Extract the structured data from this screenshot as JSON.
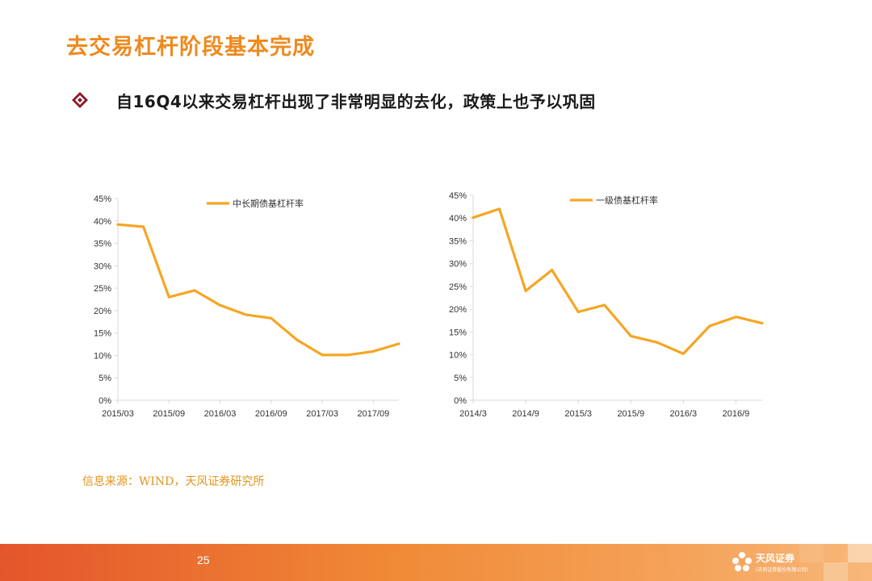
{
  "slide": {
    "title": "去交易杠杆阶段基本完成",
    "bullet_text": "自16Q4以来交易杠杆出现了非常明显的去化，政策上也予以巩固",
    "source": "信息来源：WIND，天风证券研究所",
    "page_number": "25"
  },
  "brand": {
    "name": "天风证券",
    "tagline": "(天风证券股份有限公司)"
  },
  "colors": {
    "accent": "#ee8a1e",
    "line": "#f5a623",
    "axis": "#d9d9d9",
    "text": "#333333"
  },
  "chart_data": [
    {
      "type": "line",
      "title": "",
      "xlabel": "",
      "ylabel": "",
      "x_ticks": [
        "2015/03",
        "2015/09",
        "2016/03",
        "2016/09",
        "2017/03",
        "2017/09"
      ],
      "y_ticks": [
        "0%",
        "5%",
        "10%",
        "15%",
        "20%",
        "25%",
        "30%",
        "35%",
        "40%",
        "45%"
      ],
      "ylim": [
        0,
        45
      ],
      "grid": false,
      "legend": "top",
      "series": [
        {
          "name": "中长期债基杠杆率",
          "x": [
            "2015/03",
            "2015/06",
            "2015/09",
            "2015/12",
            "2016/03",
            "2016/06",
            "2016/09",
            "2016/12",
            "2017/03",
            "2017/06",
            "2017/09",
            "2017/12"
          ],
          "values": [
            39.2,
            38.7,
            23.0,
            24.5,
            21.2,
            19.1,
            18.3,
            13.5,
            10.1,
            10.1,
            10.9,
            12.6
          ]
        }
      ]
    },
    {
      "type": "line",
      "title": "",
      "xlabel": "",
      "ylabel": "",
      "x_ticks": [
        "2014/3",
        "2014/9",
        "2015/3",
        "2015/9",
        "2016/3",
        "2016/9"
      ],
      "y_ticks": [
        "0%",
        "5%",
        "10%",
        "15%",
        "20%",
        "25%",
        "30%",
        "35%",
        "40%",
        "45%"
      ],
      "ylim": [
        0,
        45
      ],
      "grid": false,
      "legend": "top",
      "series": [
        {
          "name": "一级债基杠杆率",
          "x": [
            "2014/3",
            "2014/6",
            "2014/9",
            "2014/12",
            "2015/3",
            "2015/6",
            "2015/9",
            "2015/12",
            "2016/3",
            "2016/6",
            "2016/9",
            "2016/12"
          ],
          "values": [
            40.1,
            42.0,
            24.0,
            28.6,
            19.4,
            20.9,
            14.1,
            12.7,
            10.2,
            16.3,
            18.3,
            16.9
          ]
        }
      ]
    }
  ]
}
